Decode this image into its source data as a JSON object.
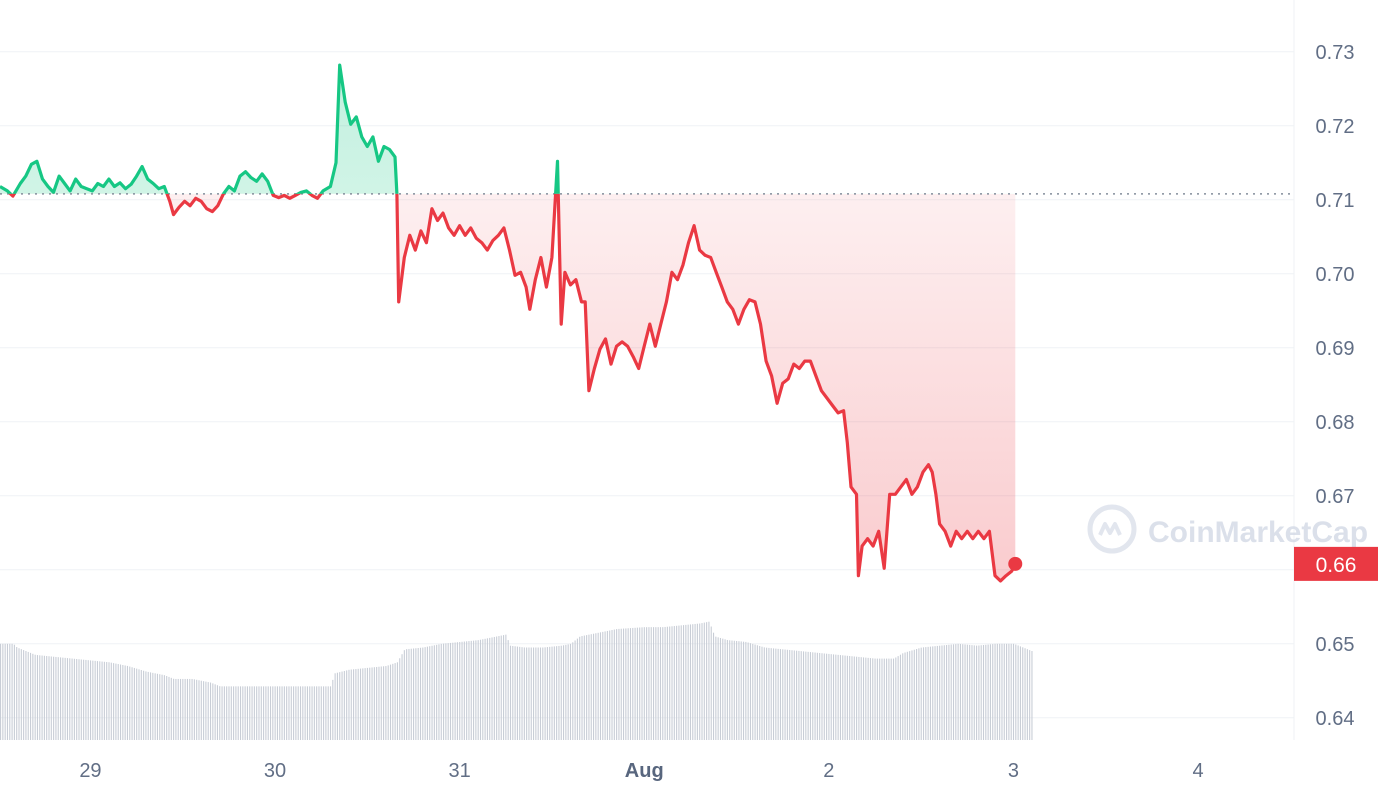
{
  "watermark": "CoinMarketCap",
  "colors": {
    "up": "#16c784",
    "down": "#ea3943",
    "grid": "#eff2f5",
    "volume": "#c8cdd6",
    "axis_text": "#616e85"
  },
  "chart_data": {
    "type": "line",
    "baseline": 0.7108,
    "current_price_label": "0.66",
    "current_price": 0.6608,
    "ylim": [
      0.637,
      0.737
    ],
    "y_ticks": [
      "0.64",
      "0.65",
      "0.66",
      "0.67",
      "0.68",
      "0.69",
      "0.70",
      "0.71",
      "0.72",
      "0.73"
    ],
    "x_ticks": [
      {
        "label": "29",
        "x": 1
      },
      {
        "label": "30",
        "x": 2
      },
      {
        "label": "31",
        "x": 3
      },
      {
        "label": "Aug",
        "x": 4,
        "bold": true
      },
      {
        "label": "2",
        "x": 5
      },
      {
        "label": "3",
        "x": 6
      },
      {
        "label": "4",
        "x": 7
      }
    ],
    "xlim": [
      0.51,
      7.52
    ],
    "series": [
      {
        "points": [
          [
            0.51,
            0.7118
          ],
          [
            0.55,
            0.7112
          ],
          [
            0.58,
            0.7105
          ],
          [
            0.62,
            0.7122
          ],
          [
            0.65,
            0.7132
          ],
          [
            0.68,
            0.7148
          ],
          [
            0.71,
            0.7152
          ],
          [
            0.74,
            0.7128
          ],
          [
            0.77,
            0.7118
          ],
          [
            0.8,
            0.711
          ],
          [
            0.83,
            0.7132
          ],
          [
            0.86,
            0.7122
          ],
          [
            0.89,
            0.7112
          ],
          [
            0.92,
            0.7128
          ],
          [
            0.95,
            0.7118
          ],
          [
            0.98,
            0.7115
          ],
          [
            1.01,
            0.7112
          ],
          [
            1.04,
            0.7122
          ],
          [
            1.07,
            0.7118
          ],
          [
            1.1,
            0.7128
          ],
          [
            1.13,
            0.7118
          ],
          [
            1.16,
            0.7123
          ],
          [
            1.19,
            0.7115
          ],
          [
            1.22,
            0.7121
          ],
          [
            1.25,
            0.7132
          ],
          [
            1.28,
            0.7145
          ],
          [
            1.31,
            0.7128
          ],
          [
            1.34,
            0.7122
          ],
          [
            1.37,
            0.7115
          ],
          [
            1.4,
            0.7118
          ],
          [
            1.43,
            0.7098
          ],
          [
            1.45,
            0.708
          ],
          [
            1.48,
            0.709
          ],
          [
            1.51,
            0.7098
          ],
          [
            1.54,
            0.7092
          ],
          [
            1.57,
            0.7102
          ],
          [
            1.6,
            0.7098
          ],
          [
            1.63,
            0.7088
          ],
          [
            1.66,
            0.7084
          ],
          [
            1.69,
            0.7092
          ],
          [
            1.72,
            0.7108
          ],
          [
            1.75,
            0.7118
          ],
          [
            1.78,
            0.7112
          ],
          [
            1.81,
            0.7132
          ],
          [
            1.84,
            0.7138
          ],
          [
            1.87,
            0.713
          ],
          [
            1.9,
            0.7125
          ],
          [
            1.93,
            0.7135
          ],
          [
            1.96,
            0.7125
          ],
          [
            1.99,
            0.7106
          ],
          [
            2.02,
            0.7103
          ],
          [
            2.05,
            0.7106
          ],
          [
            2.08,
            0.7102
          ],
          [
            2.11,
            0.7106
          ],
          [
            2.14,
            0.711
          ],
          [
            2.17,
            0.7112
          ],
          [
            2.2,
            0.7106
          ],
          [
            2.23,
            0.7102
          ],
          [
            2.26,
            0.7112
          ],
          [
            2.3,
            0.7118
          ],
          [
            2.33,
            0.715
          ],
          [
            2.35,
            0.7282
          ],
          [
            2.38,
            0.7232
          ],
          [
            2.41,
            0.7202
          ],
          [
            2.44,
            0.7212
          ],
          [
            2.47,
            0.7185
          ],
          [
            2.5,
            0.7172
          ],
          [
            2.53,
            0.7185
          ],
          [
            2.56,
            0.7152
          ],
          [
            2.59,
            0.7172
          ],
          [
            2.62,
            0.7168
          ],
          [
            2.65,
            0.7158
          ],
          [
            2.66,
            0.7108
          ],
          [
            2.67,
            0.6962
          ],
          [
            2.7,
            0.7022
          ],
          [
            2.73,
            0.7052
          ],
          [
            2.76,
            0.7032
          ],
          [
            2.79,
            0.7058
          ],
          [
            2.82,
            0.7042
          ],
          [
            2.85,
            0.7088
          ],
          [
            2.88,
            0.7072
          ],
          [
            2.91,
            0.7082
          ],
          [
            2.94,
            0.7062
          ],
          [
            2.97,
            0.7052
          ],
          [
            3.0,
            0.7065
          ],
          [
            3.03,
            0.7052
          ],
          [
            3.06,
            0.7062
          ],
          [
            3.09,
            0.7048
          ],
          [
            3.12,
            0.7042
          ],
          [
            3.15,
            0.7032
          ],
          [
            3.18,
            0.7045
          ],
          [
            3.21,
            0.7052
          ],
          [
            3.24,
            0.7062
          ],
          [
            3.27,
            0.7032
          ],
          [
            3.3,
            0.6998
          ],
          [
            3.33,
            0.7002
          ],
          [
            3.36,
            0.6982
          ],
          [
            3.38,
            0.6952
          ],
          [
            3.41,
            0.6992
          ],
          [
            3.44,
            0.7022
          ],
          [
            3.47,
            0.6982
          ],
          [
            3.5,
            0.7022
          ],
          [
            3.52,
            0.7108
          ],
          [
            3.53,
            0.7152
          ],
          [
            3.55,
            0.6932
          ],
          [
            3.57,
            0.7002
          ],
          [
            3.6,
            0.6985
          ],
          [
            3.63,
            0.6992
          ],
          [
            3.66,
            0.6962
          ],
          [
            3.68,
            0.6962
          ],
          [
            3.7,
            0.6842
          ],
          [
            3.73,
            0.6872
          ],
          [
            3.76,
            0.6898
          ],
          [
            3.79,
            0.6912
          ],
          [
            3.82,
            0.6878
          ],
          [
            3.85,
            0.6902
          ],
          [
            3.88,
            0.6908
          ],
          [
            3.91,
            0.6902
          ],
          [
            3.94,
            0.6888
          ],
          [
            3.97,
            0.6872
          ],
          [
            4.0,
            0.6902
          ],
          [
            4.03,
            0.6932
          ],
          [
            4.06,
            0.6902
          ],
          [
            4.09,
            0.6932
          ],
          [
            4.12,
            0.6962
          ],
          [
            4.15,
            0.7002
          ],
          [
            4.18,
            0.6992
          ],
          [
            4.21,
            0.7012
          ],
          [
            4.24,
            0.7042
          ],
          [
            4.27,
            0.7065
          ],
          [
            4.3,
            0.7032
          ],
          [
            4.33,
            0.7025
          ],
          [
            4.36,
            0.7022
          ],
          [
            4.39,
            0.7002
          ],
          [
            4.42,
            0.6982
          ],
          [
            4.45,
            0.6962
          ],
          [
            4.48,
            0.6952
          ],
          [
            4.51,
            0.6932
          ],
          [
            4.54,
            0.6952
          ],
          [
            4.57,
            0.6965
          ],
          [
            4.6,
            0.6962
          ],
          [
            4.63,
            0.6932
          ],
          [
            4.66,
            0.6882
          ],
          [
            4.69,
            0.6862
          ],
          [
            4.72,
            0.6825
          ],
          [
            4.75,
            0.6852
          ],
          [
            4.78,
            0.6858
          ],
          [
            4.81,
            0.6878
          ],
          [
            4.84,
            0.6872
          ],
          [
            4.87,
            0.6882
          ],
          [
            4.9,
            0.6882
          ],
          [
            4.93,
            0.6862
          ],
          [
            4.96,
            0.6842
          ],
          [
            4.99,
            0.6832
          ],
          [
            5.02,
            0.6822
          ],
          [
            5.05,
            0.6812
          ],
          [
            5.08,
            0.6815
          ],
          [
            5.1,
            0.6772
          ],
          [
            5.12,
            0.6712
          ],
          [
            5.15,
            0.6702
          ],
          [
            5.16,
            0.6592
          ],
          [
            5.18,
            0.6632
          ],
          [
            5.21,
            0.6642
          ],
          [
            5.24,
            0.6632
          ],
          [
            5.27,
            0.6652
          ],
          [
            5.3,
            0.6602
          ],
          [
            5.33,
            0.6702
          ],
          [
            5.36,
            0.6702
          ],
          [
            5.39,
            0.6712
          ],
          [
            5.42,
            0.6722
          ],
          [
            5.45,
            0.6702
          ],
          [
            5.48,
            0.6712
          ],
          [
            5.51,
            0.6732
          ],
          [
            5.54,
            0.6742
          ],
          [
            5.56,
            0.6732
          ],
          [
            5.58,
            0.6702
          ],
          [
            5.6,
            0.6662
          ],
          [
            5.63,
            0.6652
          ],
          [
            5.66,
            0.6632
          ],
          [
            5.69,
            0.6652
          ],
          [
            5.72,
            0.6642
          ],
          [
            5.75,
            0.6652
          ],
          [
            5.78,
            0.6642
          ],
          [
            5.81,
            0.6652
          ],
          [
            5.84,
            0.6642
          ],
          [
            5.87,
            0.6652
          ],
          [
            5.9,
            0.6592
          ],
          [
            5.93,
            0.6585
          ],
          [
            5.96,
            0.6592
          ],
          [
            5.99,
            0.6598
          ],
          [
            6.01,
            0.6608
          ]
        ]
      }
    ],
    "volume_ylim": [
      0,
      1
    ],
    "volume": [
      [
        0.51,
        0.52
      ],
      [
        0.58,
        0.52
      ],
      [
        0.6,
        0.5
      ],
      [
        0.65,
        0.48
      ],
      [
        0.7,
        0.46
      ],
      [
        0.8,
        0.45
      ],
      [
        0.9,
        0.44
      ],
      [
        1.0,
        0.43
      ],
      [
        1.1,
        0.42
      ],
      [
        1.2,
        0.4
      ],
      [
        1.3,
        0.37
      ],
      [
        1.4,
        0.35
      ],
      [
        1.45,
        0.33
      ],
      [
        1.55,
        0.33
      ],
      [
        1.6,
        0.32
      ],
      [
        1.65,
        0.31
      ],
      [
        1.7,
        0.29
      ],
      [
        1.75,
        0.29
      ],
      [
        1.85,
        0.29
      ],
      [
        1.95,
        0.29
      ],
      [
        2.05,
        0.29
      ],
      [
        2.15,
        0.29
      ],
      [
        2.25,
        0.29
      ],
      [
        2.3,
        0.29
      ],
      [
        2.32,
        0.36
      ],
      [
        2.4,
        0.38
      ],
      [
        2.5,
        0.39
      ],
      [
        2.6,
        0.4
      ],
      [
        2.66,
        0.42
      ],
      [
        2.7,
        0.49
      ],
      [
        2.8,
        0.5
      ],
      [
        2.9,
        0.52
      ],
      [
        3.0,
        0.53
      ],
      [
        3.1,
        0.54
      ],
      [
        3.2,
        0.56
      ],
      [
        3.25,
        0.57
      ],
      [
        3.27,
        0.51
      ],
      [
        3.35,
        0.5
      ],
      [
        3.45,
        0.5
      ],
      [
        3.55,
        0.51
      ],
      [
        3.6,
        0.52
      ],
      [
        3.65,
        0.56
      ],
      [
        3.75,
        0.58
      ],
      [
        3.85,
        0.6
      ],
      [
        4.0,
        0.61
      ],
      [
        4.1,
        0.61
      ],
      [
        4.2,
        0.62
      ],
      [
        4.3,
        0.63
      ],
      [
        4.35,
        0.64
      ],
      [
        4.38,
        0.56
      ],
      [
        4.45,
        0.54
      ],
      [
        4.55,
        0.53
      ],
      [
        4.65,
        0.5
      ],
      [
        4.75,
        0.49
      ],
      [
        4.85,
        0.48
      ],
      [
        4.95,
        0.47
      ],
      [
        5.05,
        0.46
      ],
      [
        5.15,
        0.45
      ],
      [
        5.25,
        0.44
      ],
      [
        5.3,
        0.44
      ],
      [
        5.35,
        0.44
      ],
      [
        5.4,
        0.47
      ],
      [
        5.5,
        0.5
      ],
      [
        5.6,
        0.51
      ],
      [
        5.7,
        0.52
      ],
      [
        5.8,
        0.51
      ],
      [
        5.9,
        0.52
      ],
      [
        6.0,
        0.52
      ],
      [
        6.05,
        0.5
      ],
      [
        6.1,
        0.48
      ]
    ]
  }
}
